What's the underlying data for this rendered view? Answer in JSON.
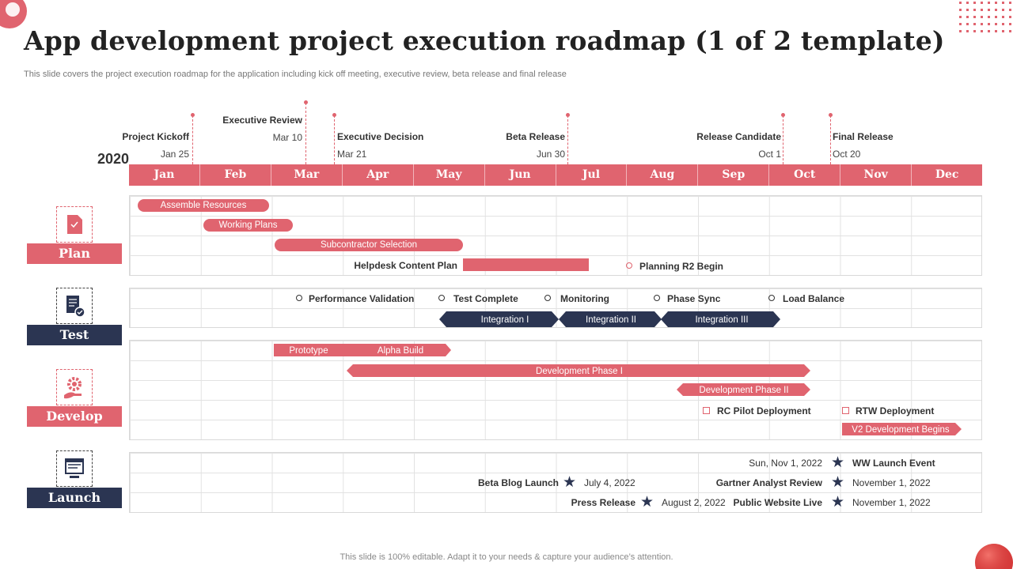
{
  "header": {
    "title": "App development project execution roadmap (1 of 2 template)",
    "subtitle": "This slide covers the project execution roadmap for the application including kick off meeting, executive review, beta release and final release"
  },
  "timeline": {
    "year": "2020",
    "months": [
      "Jan",
      "Feb",
      "Mar",
      "Apr",
      "May",
      "Jun",
      "Jul",
      "Aug",
      "Sep",
      "Oct",
      "Nov",
      "Dec"
    ],
    "milestones": [
      {
        "label": "Project Kickoff",
        "date": "Jan 25"
      },
      {
        "label": "Executive Review",
        "date": "Mar 10"
      },
      {
        "label": "Executive Decision",
        "date": "Mar 21"
      },
      {
        "label": "Beta Release",
        "date": "Jun 30"
      },
      {
        "label": "Release Candidate",
        "date": "Oct 1"
      },
      {
        "label": "Final Release",
        "date": "Oct 20"
      }
    ]
  },
  "categories": [
    {
      "label": "Plan",
      "icon": "document-icon",
      "color": "#e0646f"
    },
    {
      "label": "Test",
      "icon": "checklist-icon",
      "color": "#2b3552"
    },
    {
      "label": "Develop",
      "icon": "gear-hand-icon",
      "color": "#e0646f"
    },
    {
      "label": "Launch",
      "icon": "web-page-icon",
      "color": "#2b3552"
    }
  ],
  "plan": {
    "assemble": "Assemble Resources",
    "working": "Working Plans",
    "subcontractor": "Subcontractor Selection",
    "helpdesk": "Helpdesk Content Plan",
    "r2": "Planning R2 Begin"
  },
  "test": {
    "milestones": [
      "Performance Validation",
      "Test Complete",
      "Monitoring",
      "Phase Sync",
      "Load Balance"
    ],
    "integrations": [
      "Integration I",
      "Integration II",
      "Integration III"
    ]
  },
  "develop": {
    "prototype": "Prototype",
    "alpha": "Alpha Build",
    "phase1": "Development Phase I",
    "phase2": "Development Phase II",
    "rc_pilot": "RC Pilot Deployment",
    "rtw": "RTW Deployment",
    "v2": "V2 Development Begins"
  },
  "launch": {
    "ww_date": "Sun, Nov 1, 2022",
    "ww_label": "WW Launch Event",
    "beta_label": "Beta Blog Launch",
    "beta_date": "July 4, 2022",
    "gartner_label": "Gartner Analyst Review",
    "gartner_date": "November 1, 2022",
    "press_label": "Press Release",
    "press_date": "August 2, 2022",
    "website_label": "Public Website Live",
    "website_date": "November 1, 2022"
  },
  "footer": "This slide is 100% editable. Adapt it to your needs & capture your audience’s attention.",
  "colors": {
    "accent": "#e0646f",
    "navy": "#2b3552"
  }
}
